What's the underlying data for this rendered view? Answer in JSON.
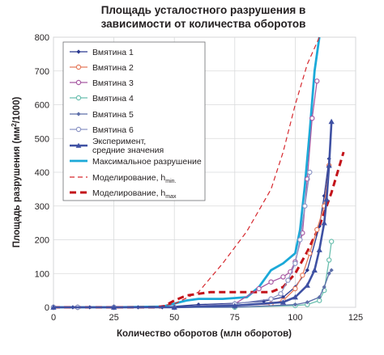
{
  "chart_data": {
    "type": "line",
    "title_lines": [
      "Площадь усталостного разрушения в",
      "зависимости от количества оборотов"
    ],
    "xlabel": "Количество оборотов (млн оборотов)",
    "ylabel": "Площадь разрушения (мм²/1000)",
    "xlim": [
      0,
      125
    ],
    "ylim": [
      0,
      800
    ],
    "x_ticks": [
      0,
      25,
      50,
      75,
      100,
      125
    ],
    "y_ticks": [
      0,
      100,
      200,
      300,
      400,
      500,
      600,
      700,
      800
    ],
    "x_tick_labels": [
      "0",
      "25",
      "50",
      "75",
      "100",
      "125"
    ],
    "y_tick_labels": [
      "0",
      "100",
      "200",
      "300",
      "400",
      "500",
      "600",
      "700",
      "800"
    ],
    "grid": true,
    "legend_position": "top-left",
    "series": [
      {
        "name": "Вмятина 1",
        "color": "#2b3990",
        "style": "line-marker",
        "marker": "diamond",
        "x": [
          0,
          8,
          15,
          25,
          35,
          45,
          60,
          75,
          87,
          95,
          100,
          105,
          110,
          112,
          114
        ],
        "y": [
          0,
          0,
          0,
          0,
          0,
          0,
          8,
          12,
          18,
          30,
          60,
          110,
          240,
          330,
          440
        ]
      },
      {
        "name": "Вмятина 2",
        "color": "#e57b5d",
        "style": "line-marker",
        "marker": "circle",
        "x": [
          0,
          10,
          25,
          50,
          75,
          90,
          95,
          100,
          103,
          106,
          109,
          112,
          114
        ],
        "y": [
          0,
          0,
          0,
          0,
          5,
          10,
          20,
          55,
          95,
          160,
          230,
          300,
          420
        ]
      },
      {
        "name": "Вмятина 3",
        "color": "#a85aa3",
        "style": "line-marker",
        "marker": "circle",
        "x": [
          0,
          10,
          25,
          50,
          75,
          85,
          90,
          95,
          98,
          100,
          103,
          105,
          107,
          109
        ],
        "y": [
          0,
          0,
          0,
          0,
          10,
          55,
          75,
          90,
          105,
          135,
          220,
          380,
          560,
          670
        ]
      },
      {
        "name": "Вмятина 4",
        "color": "#6bbfaf",
        "style": "line-marker",
        "marker": "circle",
        "x": [
          0,
          10,
          25,
          50,
          75,
          100,
          105,
          110,
          112,
          114,
          115
        ],
        "y": [
          0,
          0,
          0,
          0,
          0,
          5,
          8,
          20,
          50,
          140,
          195
        ]
      },
      {
        "name": "Вмятина 5",
        "color": "#5d6fa9",
        "style": "line-marker",
        "marker": "diamond",
        "x": [
          0,
          10,
          25,
          50,
          75,
          100,
          105,
          110,
          112,
          114,
          115
        ],
        "y": [
          0,
          0,
          0,
          0,
          0,
          8,
          15,
          30,
          60,
          100,
          110
        ]
      },
      {
        "name": "Вмятина 6",
        "color": "#8d96c6",
        "style": "line-marker",
        "marker": "circle",
        "x": [
          0,
          10,
          25,
          50,
          75,
          90,
          94,
          97,
          100,
          102,
          104,
          106
        ],
        "y": [
          0,
          0,
          0,
          0,
          10,
          25,
          40,
          80,
          130,
          200,
          300,
          400
        ]
      },
      {
        "name_lines": [
          "Эксперимент,",
          "средние значения"
        ],
        "color": "#3f51a3",
        "style": "thick-marker",
        "marker": "triangle",
        "x": [
          0,
          25,
          50,
          75,
          95,
          100,
          105,
          108,
          110,
          112,
          113,
          114,
          115
        ],
        "y": [
          0,
          0,
          0,
          5,
          15,
          30,
          65,
          110,
          170,
          250,
          320,
          420,
          550
        ]
      },
      {
        "name": "Максимальное разрушение",
        "color": "#1ba9d8",
        "style": "thick",
        "x": [
          0,
          25,
          45,
          55,
          60,
          70,
          80,
          85,
          90,
          95,
          100,
          102,
          104,
          106,
          108,
          110
        ],
        "y": [
          0,
          0,
          2,
          20,
          25,
          25,
          30,
          60,
          110,
          130,
          160,
          230,
          360,
          520,
          700,
          800
        ]
      },
      {
        "name": "Моделирование, h",
        "name_sub": "min.",
        "color": "#d6292f",
        "style": "thin-dash",
        "x": [
          0,
          40,
          50,
          60,
          70,
          80,
          90,
          95,
          100,
          105,
          110
        ],
        "y": [
          0,
          0,
          10,
          45,
          130,
          225,
          350,
          460,
          600,
          720,
          800
        ]
      },
      {
        "name": "Моделирование, h",
        "name_sub": "max",
        "color": "#c3131a",
        "style": "thick-dash",
        "x": [
          0,
          35,
          45,
          50,
          55,
          60,
          65,
          70,
          75,
          80,
          85,
          90,
          95,
          100,
          105,
          110,
          115,
          120
        ],
        "y": [
          0,
          0,
          0,
          20,
          35,
          40,
          45,
          45,
          45,
          45,
          45,
          45,
          60,
          100,
          165,
          240,
          340,
          460
        ]
      }
    ]
  }
}
